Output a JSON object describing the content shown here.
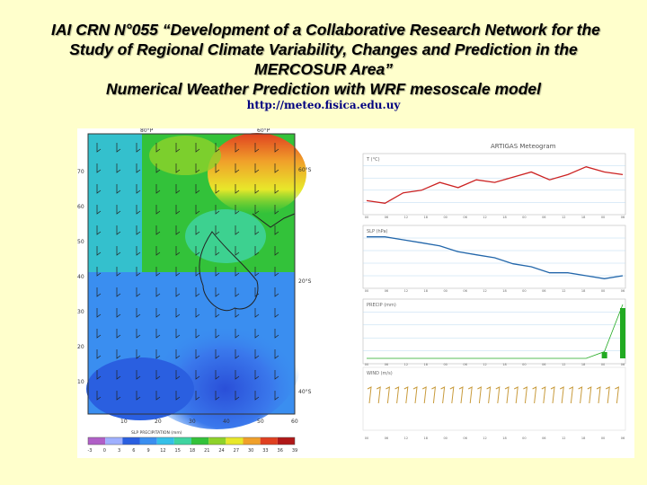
{
  "slide": {
    "title_line1": "IAI CRN N°055 “Development of a Collaborative Research Network for the",
    "title_line2": "Study of Regional Climate Variability, Changes and Prediction in the",
    "title_line3": "MERCOSUR Area”",
    "title_line4": "Numerical Weather Prediction with WRF mesoscale model",
    "url": "http://meteo.fisica.edu.uy"
  },
  "map": {
    "top_labels": [
      "80°P",
      "60°P"
    ],
    "right_labels": [
      "60°S",
      "20°S",
      "40°S"
    ],
    "left_ticks": [
      "70",
      "60",
      "50",
      "40",
      "30",
      "20",
      "10"
    ],
    "bottom_ticks": [
      "10",
      "20",
      "30",
      "40",
      "50",
      "60"
    ],
    "colorbar_title": "SLP PRECIPITATION (mm)",
    "colorbar_ticks": [
      "-3",
      "0",
      "3",
      "6",
      "9",
      "12",
      "15",
      "18",
      "21",
      "24",
      "27",
      "30",
      "33",
      "36",
      "39"
    ],
    "colors": [
      "#b05fc7",
      "#9fb0ff",
      "#2a5fe0",
      "#3a8ef0",
      "#35c0e8",
      "#3fd4a0",
      "#33c23a",
      "#8ed22a",
      "#e8e82a",
      "#f0a02a",
      "#e04020",
      "#b01818"
    ]
  },
  "meteogram": {
    "title": "ARTIGAS Meteogram",
    "panel1_label": "T (°C)",
    "panel2_label": "SLP (hPa)",
    "panel3_label": "PRECIP (mm)",
    "panel4_label": "WIND (m/s)",
    "x_ticks": [
      "00",
      "06",
      "12",
      "18",
      "00",
      "06",
      "12",
      "18",
      "00",
      "06",
      "12",
      "18",
      "00",
      "06"
    ],
    "temp_series": [
      8,
      7,
      11,
      12,
      15,
      13,
      16,
      15,
      17,
      19,
      16,
      18,
      21,
      19,
      18
    ],
    "slp_series": [
      1018,
      1018,
      1017,
      1016,
      1015,
      1013,
      1012,
      1011,
      1009,
      1008,
      1006,
      1006,
      1005,
      1004,
      1005
    ],
    "precip_series": [
      0,
      0,
      0,
      0,
      0,
      0,
      0,
      0,
      0,
      0,
      0,
      0,
      0,
      1,
      8
    ],
    "colors": {
      "temp": "#cc2222",
      "slp": "#2266aa",
      "precip": "#22aa22",
      "wind": "#c89a3a"
    }
  }
}
